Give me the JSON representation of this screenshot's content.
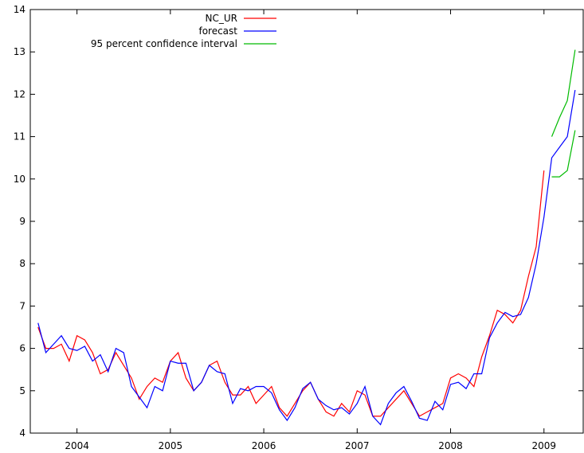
{
  "chart_data": {
    "type": "line",
    "title": "",
    "xlabel": "",
    "ylabel": "",
    "xlim": [
      2003.5,
      2009.42
    ],
    "ylim": [
      4,
      14
    ],
    "x_ticks": [
      2004,
      2005,
      2006,
      2007,
      2008,
      2009
    ],
    "y_ticks": [
      4,
      5,
      6,
      7,
      8,
      9,
      10,
      11,
      12,
      13,
      14
    ],
    "grid": false,
    "legend_position": "top-center",
    "x_start": "2003-08",
    "series": [
      {
        "name": "NC_UR",
        "color": "#ff0000",
        "values": [
          6.5,
          6.0,
          6.0,
          6.1,
          5.7,
          6.3,
          6.2,
          5.9,
          5.4,
          5.5,
          5.9,
          5.6,
          5.3,
          4.8,
          5.1,
          5.3,
          5.2,
          5.7,
          5.9,
          5.3,
          5.0,
          5.2,
          5.6,
          5.7,
          5.2,
          4.9,
          4.9,
          5.1,
          4.7,
          4.9,
          5.1,
          4.6,
          4.4,
          4.7,
          5.0,
          5.2,
          4.8,
          4.5,
          4.4,
          4.7,
          4.5,
          5.0,
          4.9,
          4.4,
          4.4,
          4.6,
          4.8,
          5.0,
          4.7,
          4.4,
          4.5,
          4.6,
          4.7,
          5.3,
          5.4,
          5.3,
          5.1,
          5.8,
          6.3,
          6.9,
          6.8,
          6.6,
          6.9,
          7.7,
          8.4,
          10.2
        ]
      },
      {
        "name": "forecast",
        "color": "#0000ff",
        "values": [
          6.6,
          5.9,
          6.1,
          6.3,
          6.0,
          5.95,
          6.05,
          5.7,
          5.85,
          5.45,
          6.0,
          5.9,
          5.1,
          4.85,
          4.6,
          5.1,
          5.0,
          5.7,
          5.65,
          5.65,
          5.0,
          5.2,
          5.6,
          5.45,
          5.4,
          4.7,
          5.05,
          5.0,
          5.1,
          5.1,
          4.95,
          4.55,
          4.3,
          4.6,
          5.05,
          5.2,
          4.8,
          4.65,
          4.55,
          4.6,
          4.45,
          4.7,
          5.1,
          4.4,
          4.2,
          4.7,
          4.95,
          5.1,
          4.75,
          4.35,
          4.3,
          4.75,
          4.55,
          5.15,
          5.2,
          5.05,
          5.4,
          5.4,
          6.25,
          6.6,
          6.85,
          6.75,
          6.8,
          7.2,
          8.0,
          9.1,
          10.5,
          10.75,
          11.0,
          12.1
        ]
      },
      {
        "name": "95 percent confidence interval",
        "color": "#00bb00",
        "x_start": "2009-02",
        "upper": [
          11.0,
          11.45,
          11.85,
          13.05
        ],
        "lower": [
          10.05,
          10.05,
          10.2,
          11.15
        ]
      }
    ]
  }
}
